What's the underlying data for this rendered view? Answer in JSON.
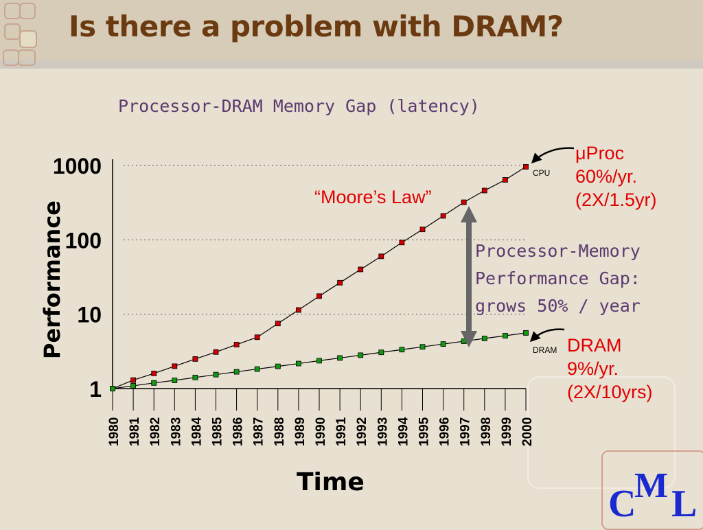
{
  "slide": {
    "title": "Is there a problem with DRAM?",
    "subtitle": "Processor-DRAM Memory Gap (latency)",
    "moore_label": "“Moore’s Law”",
    "cpu_note": [
      "μProc",
      "60%/yr.",
      "(2X/1.5yr)"
    ],
    "dram_note": [
      "DRAM",
      "9%/yr.",
      "(2X/10yrs)"
    ],
    "gap_note": [
      "Processor-Memory",
      "Performance Gap:",
      "grows 50% / year"
    ],
    "logo": {
      "c": "C",
      "m": "M",
      "l": "L"
    }
  },
  "chart_data": {
    "type": "line",
    "title": "Processor-DRAM Memory Gap (latency)",
    "xlabel": "Time",
    "ylabel": "Performance",
    "y_scale": "log",
    "ylim": [
      1,
      1000
    ],
    "y_ticks": [
      "1",
      "10",
      "100",
      "1000"
    ],
    "x": [
      1980,
      1981,
      1982,
      1983,
      1984,
      1985,
      1986,
      1987,
      1988,
      1989,
      1990,
      1991,
      1992,
      1993,
      1994,
      1995,
      1996,
      1997,
      1998,
      1999,
      2000
    ],
    "series": [
      {
        "name": "CPU",
        "color": "#cc0000",
        "values": [
          1,
          1.3,
          1.6,
          2,
          2.5,
          3.1,
          3.9,
          4.9,
          7.5,
          11.4,
          17.5,
          26.5,
          40,
          60,
          92,
          138,
          210,
          320,
          460,
          640,
          960
        ]
      },
      {
        "name": "DRAM",
        "color": "#119911",
        "values": [
          1,
          1.09,
          1.19,
          1.29,
          1.41,
          1.54,
          1.68,
          1.83,
          1.99,
          2.17,
          2.37,
          2.58,
          2.81,
          3.07,
          3.34,
          3.64,
          3.97,
          4.33,
          4.72,
          5.14,
          5.6
        ]
      }
    ],
    "grid": "dotted horizontal at 10, 100, 1000",
    "colors": {
      "title": "#6b3a10",
      "subtitle": "#5b3a70",
      "notes": "#e00000",
      "arrow": "#666666",
      "logo": "#1a2ad0"
    }
  }
}
